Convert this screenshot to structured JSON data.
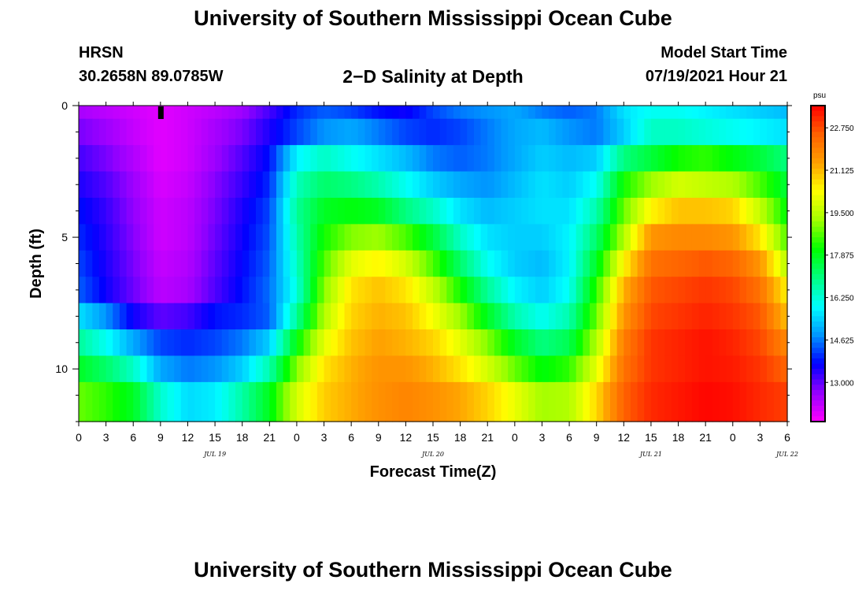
{
  "header": {
    "title": "University of Southern Mississippi Ocean Cube",
    "station": "HRSN",
    "coords": "30.2658N  89.0785W",
    "subtitle": "2−D Salinity at Depth",
    "model_label": "Model Start Time",
    "model_time": "07/19/2021 Hour 21"
  },
  "footer": {
    "title": "University of Southern Mississippi Ocean Cube"
  },
  "chart_data": {
    "type": "heatmap",
    "title": "2-D Salinity at Depth",
    "xlabel": "Forecast Time(Z)",
    "ylabel": "Depth (ft)",
    "x_ticks": [
      "0",
      "3",
      "6",
      "9",
      "12",
      "15",
      "18",
      "21",
      "0",
      "3",
      "6",
      "9",
      "12",
      "15",
      "18",
      "21",
      "0",
      "3",
      "6",
      "9",
      "12",
      "15",
      "18",
      "21",
      "0",
      "3",
      "6"
    ],
    "date_labels": [
      {
        "label": "JUL 19",
        "hour": 15
      },
      {
        "label": "JUL 20",
        "hour": 39
      },
      {
        "label": "JUL 21",
        "hour": 63
      },
      {
        "label": "JUL 22",
        "hour": 78
      }
    ],
    "x_range_hours": [
      0,
      78
    ],
    "y_ticks": [
      0,
      5,
      10
    ],
    "y_range_ft": [
      0,
      12
    ],
    "colorbar": {
      "unit": "psu",
      "ticks": [
        "22.750",
        "21.125",
        "19.500",
        "17.875",
        "16.250",
        "14.625",
        "13.000"
      ],
      "range": [
        11.5,
        23.6
      ],
      "colors": [
        "#ff00ff",
        "#9400ff",
        "#0000ff",
        "#0095ff",
        "#00ffff",
        "#00ff80",
        "#00ff00",
        "#a0ff00",
        "#ffff00",
        "#ffa000",
        "#ff6000",
        "#ff0000"
      ]
    },
    "marker": {
      "hour": 9,
      "depth_ft": 0.3
    },
    "depth_rows_ft": [
      0.25,
      1,
      2,
      3,
      4,
      5,
      6,
      7,
      8,
      9,
      10,
      11,
      11.75
    ],
    "time_hours": [
      0,
      3,
      6,
      9,
      12,
      15,
      18,
      21,
      24,
      27,
      30,
      33,
      36,
      39,
      42,
      45,
      48,
      51,
      54,
      57,
      60,
      63,
      66,
      69,
      72,
      75,
      78
    ],
    "salinity_psu": [
      [
        12.4,
        12.2,
        12.0,
        11.8,
        12.0,
        12.2,
        12.5,
        13.2,
        14.0,
        14.4,
        14.2,
        13.8,
        13.6,
        14.2,
        14.6,
        14.8,
        15.0,
        14.6,
        14.4,
        14.6,
        15.6,
        16.0,
        16.0,
        15.8,
        15.6,
        15.4,
        15.2
      ],
      [
        12.8,
        12.5,
        12.1,
        11.8,
        12.0,
        12.4,
        12.8,
        13.5,
        14.2,
        14.8,
        15.0,
        14.6,
        14.2,
        14.0,
        14.2,
        14.6,
        15.0,
        15.2,
        14.8,
        14.6,
        15.4,
        16.4,
        16.4,
        16.2,
        16.0,
        15.8,
        15.6
      ],
      [
        13.2,
        12.8,
        12.3,
        11.8,
        12.0,
        12.5,
        13.1,
        13.8,
        15.8,
        16.4,
        16.0,
        15.6,
        15.2,
        14.6,
        14.4,
        14.6,
        15.0,
        15.4,
        15.2,
        15.4,
        17.0,
        17.6,
        18.2,
        18.4,
        18.0,
        17.6,
        17.0
      ],
      [
        13.5,
        13.1,
        12.5,
        11.9,
        12.1,
        12.7,
        13.3,
        14.0,
        16.5,
        17.2,
        17.0,
        16.6,
        16.0,
        15.4,
        15.0,
        14.8,
        15.2,
        15.6,
        15.4,
        16.0,
        18.2,
        19.2,
        19.8,
        19.6,
        19.4,
        18.6,
        17.6
      ],
      [
        13.8,
        13.3,
        12.6,
        12.0,
        12.2,
        12.8,
        13.5,
        14.2,
        16.8,
        17.8,
        18.0,
        17.8,
        17.0,
        16.4,
        15.6,
        15.2,
        15.4,
        15.6,
        15.6,
        16.6,
        18.8,
        20.4,
        21.0,
        21.0,
        20.8,
        19.6,
        18.0
      ],
      [
        14.0,
        13.4,
        12.7,
        12.0,
        12.2,
        12.9,
        13.6,
        14.3,
        16.6,
        18.2,
        19.0,
        19.2,
        18.6,
        17.6,
        16.4,
        15.6,
        15.4,
        15.4,
        15.8,
        17.2,
        19.4,
        21.6,
        21.8,
        21.8,
        21.6,
        20.6,
        18.6
      ],
      [
        14.2,
        13.5,
        12.8,
        12.1,
        12.3,
        13.0,
        13.7,
        14.4,
        16.4,
        18.6,
        20.0,
        20.4,
        19.8,
        18.6,
        17.2,
        16.0,
        15.4,
        15.2,
        15.8,
        17.8,
        20.4,
        22.2,
        22.4,
        22.6,
        22.4,
        21.6,
        19.4
      ],
      [
        14.4,
        13.6,
        12.9,
        12.2,
        12.4,
        13.1,
        13.8,
        14.5,
        16.2,
        19.0,
        20.6,
        21.0,
        20.6,
        19.6,
        18.2,
        16.8,
        15.8,
        15.4,
        16.0,
        18.4,
        21.2,
        22.6,
        22.8,
        23.0,
        22.8,
        22.2,
        20.4
      ],
      [
        15.6,
        14.8,
        13.6,
        13.0,
        13.2,
        13.8,
        14.0,
        14.4,
        16.8,
        19.4,
        20.8,
        21.2,
        21.0,
        20.2,
        19.2,
        17.8,
        16.6,
        16.0,
        16.6,
        18.8,
        21.6,
        22.8,
        23.0,
        23.2,
        23.0,
        22.6,
        21.0
      ],
      [
        16.8,
        16.0,
        15.0,
        14.2,
        14.0,
        14.2,
        14.6,
        15.4,
        18.0,
        20.0,
        21.0,
        21.4,
        21.2,
        20.8,
        20.0,
        19.0,
        17.8,
        17.0,
        17.4,
        19.4,
        22.0,
        23.0,
        23.2,
        23.4,
        23.2,
        22.8,
        21.8
      ],
      [
        17.8,
        17.2,
        16.4,
        15.0,
        14.6,
        14.8,
        15.4,
        16.6,
        19.0,
        20.6,
        21.2,
        21.6,
        21.6,
        21.2,
        20.6,
        19.8,
        18.8,
        18.0,
        18.4,
        20.0,
        22.2,
        23.0,
        23.2,
        23.4,
        23.3,
        23.0,
        22.4
      ],
      [
        18.6,
        18.2,
        17.6,
        16.0,
        15.2,
        15.4,
        16.4,
        17.6,
        19.6,
        20.8,
        21.2,
        21.6,
        21.8,
        21.6,
        21.2,
        20.6,
        19.8,
        19.0,
        19.2,
        20.6,
        22.4,
        23.1,
        23.3,
        23.5,
        23.4,
        23.1,
        22.8
      ],
      [
        19.2,
        18.8,
        18.2,
        17.0,
        16.2,
        16.4,
        17.2,
        18.4,
        20.2,
        21.0,
        21.4,
        21.8,
        22.0,
        21.8,
        21.6,
        21.2,
        20.6,
        19.8,
        19.8,
        21.0,
        22.6,
        23.2,
        23.4,
        23.6,
        23.5,
        23.2,
        23.0
      ]
    ]
  }
}
